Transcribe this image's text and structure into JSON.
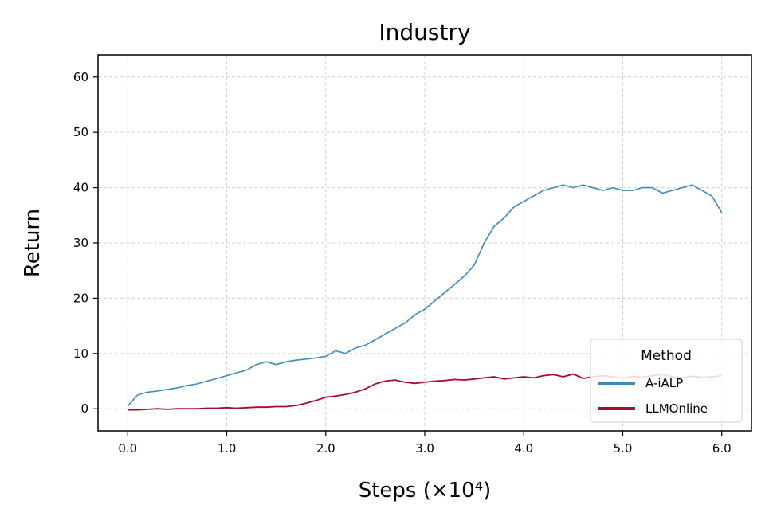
{
  "chart_data": {
    "type": "line",
    "title": "Industry",
    "xlabel": "Steps (×10⁴)",
    "ylabel": "Return",
    "xlim": [
      -0.3,
      6.3
    ],
    "ylim": [
      -4,
      64
    ],
    "xticks": [
      0,
      1,
      2,
      3,
      4,
      5,
      6
    ],
    "xtick_labels": [
      "0.0",
      "1.0",
      "2.0",
      "3.0",
      "4.0",
      "5.0",
      "6.0"
    ],
    "yticks": [
      0,
      10,
      20,
      30,
      40,
      50,
      60
    ],
    "ytick_labels": [
      "0",
      "10",
      "20",
      "30",
      "40",
      "50",
      "60"
    ],
    "grid": true,
    "legend": {
      "title": "Method",
      "position": "lower-right"
    },
    "series": [
      {
        "name": "A-iALP",
        "color": "#3a8abd",
        "x": [
          0.0,
          0.1,
          0.2,
          0.3,
          0.4,
          0.5,
          0.6,
          0.7,
          0.8,
          0.9,
          1.0,
          1.1,
          1.2,
          1.3,
          1.4,
          1.5,
          1.6,
          1.7,
          1.8,
          1.9,
          2.0,
          2.1,
          2.2,
          2.3,
          2.4,
          2.5,
          2.6,
          2.7,
          2.8,
          2.9,
          3.0,
          3.1,
          3.2,
          3.3,
          3.4,
          3.5,
          3.6,
          3.7,
          3.8,
          3.9,
          4.0,
          4.1,
          4.2,
          4.3,
          4.4,
          4.5,
          4.6,
          4.7,
          4.8,
          4.9,
          5.0,
          5.1,
          5.2,
          5.3,
          5.4,
          5.5,
          5.6,
          5.7,
          5.8,
          5.9,
          6.0
        ],
        "values": [
          0.5,
          2.5,
          3.0,
          3.2,
          3.5,
          3.8,
          4.2,
          4.5,
          5.0,
          5.5,
          6.0,
          6.5,
          7.0,
          8.0,
          8.5,
          8.0,
          8.5,
          8.8,
          9.0,
          9.2,
          9.5,
          10.5,
          10.0,
          11.0,
          11.5,
          12.5,
          13.5,
          14.5,
          15.5,
          17.0,
          18.0,
          19.5,
          21.0,
          22.5,
          24.0,
          26.0,
          30.0,
          33.0,
          34.5,
          36.5,
          37.5,
          38.5,
          39.5,
          40.0,
          40.5,
          40.0,
          40.5,
          40.0,
          39.5,
          40.0,
          39.5,
          39.5,
          40.0,
          40.0,
          39.0,
          39.5,
          40.0,
          40.5,
          39.5,
          38.5,
          35.5
        ]
      },
      {
        "name": "LLMOnline",
        "color": "#a50f2d",
        "x": [
          0.0,
          0.1,
          0.2,
          0.3,
          0.4,
          0.5,
          0.6,
          0.7,
          0.8,
          0.9,
          1.0,
          1.1,
          1.2,
          1.3,
          1.4,
          1.5,
          1.6,
          1.7,
          1.8,
          1.9,
          2.0,
          2.1,
          2.2,
          2.3,
          2.4,
          2.5,
          2.6,
          2.7,
          2.8,
          2.9,
          3.0,
          3.1,
          3.2,
          3.3,
          3.4,
          3.5,
          3.6,
          3.7,
          3.8,
          3.9,
          4.0,
          4.1,
          4.2,
          4.3,
          4.4,
          4.5,
          4.6,
          4.7,
          4.8,
          4.9,
          5.0,
          5.1,
          5.2,
          5.3,
          5.4,
          5.5,
          5.6,
          5.7,
          5.8,
          5.9,
          6.0
        ],
        "values": [
          -0.2,
          -0.2,
          -0.1,
          0.0,
          -0.1,
          0.0,
          0.0,
          0.0,
          0.1,
          0.1,
          0.2,
          0.1,
          0.2,
          0.3,
          0.3,
          0.4,
          0.4,
          0.6,
          1.0,
          1.5,
          2.1,
          2.3,
          2.6,
          3.0,
          3.6,
          4.5,
          5.0,
          5.2,
          4.8,
          4.6,
          4.8,
          5.0,
          5.1,
          5.3,
          5.2,
          5.4,
          5.6,
          5.8,
          5.4,
          5.6,
          5.8,
          5.6,
          6.0,
          6.2,
          5.8,
          6.3,
          5.5,
          5.8,
          6.0,
          5.8,
          5.5,
          5.9,
          5.7,
          6.0,
          6.2,
          5.8,
          5.6,
          5.9,
          5.7,
          5.8,
          6.0
        ]
      }
    ]
  }
}
